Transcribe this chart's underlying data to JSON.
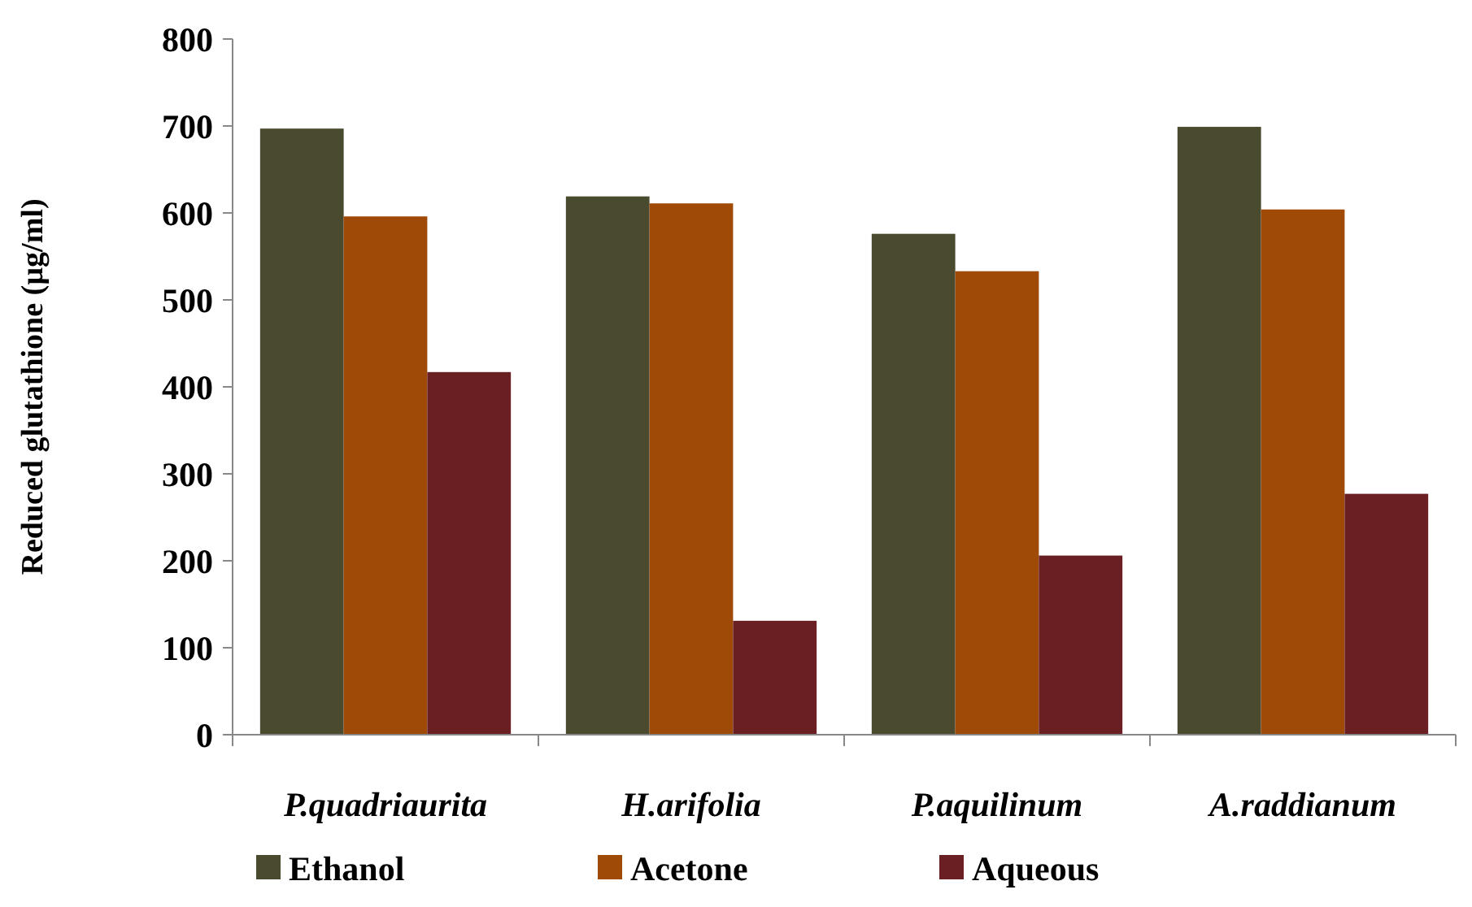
{
  "chart_data": {
    "type": "bar",
    "ylabel": "Reduced glutathione (µg/ml)",
    "categories": [
      "P.quadriaurita",
      "H.arifolia",
      "P.aquilinum",
      "A.raddianum"
    ],
    "series": [
      {
        "name": "Ethanol",
        "color": "#4a4a2e",
        "values": [
          697,
          619,
          576,
          699
        ]
      },
      {
        "name": "Acetone",
        "color": "#a04a08",
        "values": [
          596,
          611,
          533,
          604
        ]
      },
      {
        "name": "Aqueous",
        "color": "#6a1f22",
        "values": [
          417,
          131,
          206,
          277
        ]
      }
    ],
    "ylim": [
      0,
      800
    ],
    "yticks": [
      0,
      100,
      200,
      300,
      400,
      500,
      600,
      700,
      800
    ],
    "grid": false,
    "legend": "bottom"
  }
}
